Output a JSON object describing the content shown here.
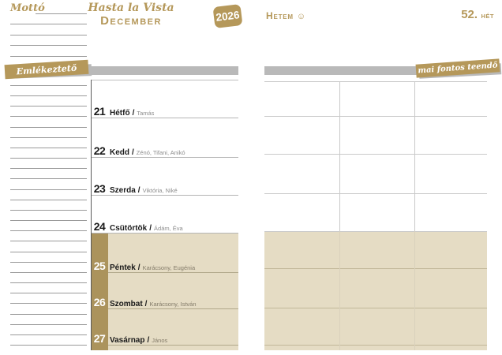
{
  "colors": {
    "gold": "#b5985a",
    "strip_gold": "#ab935c",
    "weekend_beige": "#e5dcc4",
    "gray_bar": "#b9b9b9"
  },
  "motto_label": "Mottó",
  "title": {
    "script": "Hasta la Vista",
    "month": "December",
    "year": "2026"
  },
  "week_header": {
    "my_week_label": "Hetem",
    "smiley_icon": "☺",
    "week_number": "52.",
    "week_unit": "hét"
  },
  "reminder_banner_label": "Emlékeztető",
  "todo_banner_label": "mai fontos teendő",
  "day_separator": "/",
  "days": [
    {
      "num": "21",
      "name": "Hétfő",
      "namedays": "Tamás",
      "weekend": false
    },
    {
      "num": "22",
      "name": "Kedd",
      "namedays": "Zénó, Tifani, Anikó",
      "weekend": false
    },
    {
      "num": "23",
      "name": "Szerda",
      "namedays": "Viktória, Niké",
      "weekend": false
    },
    {
      "num": "24",
      "name": "Csütörtök",
      "namedays": "Ádám, Éva",
      "weekend": false
    },
    {
      "num": "25",
      "name": "Péntek",
      "namedays": "Karácsony, Eugénia",
      "weekend": true
    },
    {
      "num": "26",
      "name": "Szombat",
      "namedays": "Karácsony, István",
      "weekend": true
    },
    {
      "num": "27",
      "name": "Vasárnap",
      "namedays": "János",
      "weekend": true
    }
  ]
}
